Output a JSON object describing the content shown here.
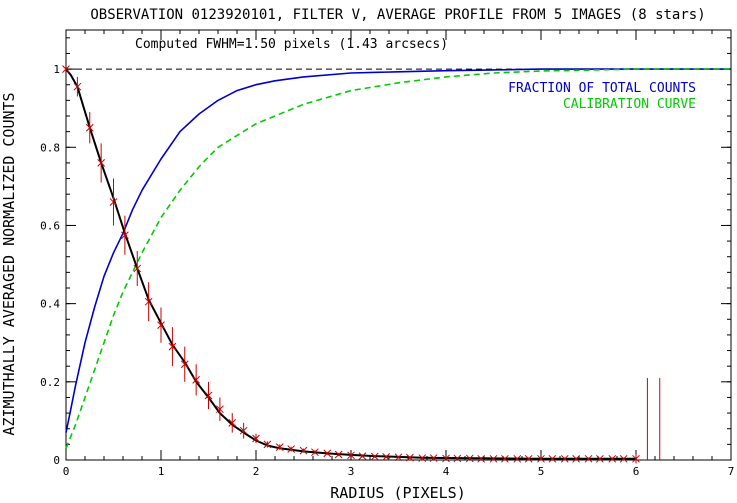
{
  "chart_data": {
    "type": "line",
    "title": "OBSERVATION 0123920101, FILTER V, AVERAGE PROFILE FROM 5 IMAGES (8 stars)",
    "annotation": "Computed FWHM=1.50 pixels (1.43 arcsecs)",
    "xlabel": "RADIUS (PIXELS)",
    "ylabel": "AZIMUTHALLY AVERAGED NORMALIZED COUNTS",
    "xlim": [
      0,
      7
    ],
    "ylim": [
      0,
      1.1
    ],
    "x_ticks": [
      "0",
      "1",
      "2",
      "3",
      "4",
      "5",
      "6",
      "7"
    ],
    "y_ticks": [
      "0",
      "0.2",
      "0.4",
      "0.6",
      "0.8",
      "1"
    ],
    "reference_line": {
      "y": 1,
      "style": "dashed",
      "color": "#000000"
    },
    "legend_position": "top-right",
    "series": [
      {
        "name": "FRACTION OF TOTAL COUNTS",
        "color": "#0000cc",
        "style": "solid",
        "x": [
          0,
          0.05,
          0.1,
          0.2,
          0.3,
          0.4,
          0.5,
          0.6,
          0.7,
          0.8,
          1.0,
          1.2,
          1.4,
          1.6,
          1.8,
          2.0,
          2.2,
          2.5,
          3.0,
          3.5,
          4.0,
          4.5,
          5.0,
          6.0,
          7.0
        ],
        "y": [
          0.07,
          0.13,
          0.19,
          0.3,
          0.39,
          0.47,
          0.53,
          0.58,
          0.64,
          0.69,
          0.77,
          0.84,
          0.885,
          0.92,
          0.945,
          0.96,
          0.97,
          0.98,
          0.99,
          0.993,
          0.996,
          0.998,
          1.0,
          1.0,
          1.0
        ]
      },
      {
        "name": "CALIBRATION CURVE",
        "color": "#00cc00",
        "style": "dashed",
        "x": [
          0,
          0.1,
          0.2,
          0.3,
          0.4,
          0.5,
          0.6,
          0.7,
          0.8,
          1.0,
          1.2,
          1.4,
          1.6,
          1.8,
          2.0,
          2.5,
          3.0,
          3.5,
          4.0,
          4.5,
          5.0,
          6.0,
          7.0
        ],
        "y": [
          0.03,
          0.09,
          0.16,
          0.23,
          0.3,
          0.37,
          0.43,
          0.48,
          0.53,
          0.62,
          0.69,
          0.75,
          0.8,
          0.83,
          0.86,
          0.91,
          0.945,
          0.965,
          0.98,
          0.99,
          0.995,
          1.0,
          1.0
        ]
      },
      {
        "name": "",
        "color": "#000000",
        "style": "solid",
        "x": [
          0,
          0.05,
          0.12,
          0.25,
          0.37,
          0.5,
          0.62,
          0.75,
          0.87,
          1.0,
          1.12,
          1.25,
          1.37,
          1.5,
          1.62,
          1.75,
          1.87,
          2.0,
          2.12,
          2.25,
          2.5,
          2.75,
          3.0,
          3.25,
          3.5,
          3.75,
          4.0,
          4.5,
          5.0,
          6.0
        ],
        "y": [
          1.0,
          0.985,
          0.955,
          0.85,
          0.76,
          0.67,
          0.58,
          0.49,
          0.41,
          0.35,
          0.295,
          0.25,
          0.2,
          0.16,
          0.12,
          0.09,
          0.07,
          0.05,
          0.037,
          0.03,
          0.022,
          0.017,
          0.013,
          0.01,
          0.008,
          0.006,
          0.005,
          0.004,
          0.003,
          0.003
        ]
      }
    ],
    "measurements": {
      "color": "#cc0000",
      "x": [
        0,
        0.12,
        0.25,
        0.37,
        0.5,
        0.62,
        0.75,
        0.87,
        1.0,
        1.12,
        1.25,
        1.37,
        1.5,
        1.62,
        1.75,
        1.87,
        2.0,
        2.12,
        2.25,
        2.37,
        2.5,
        2.62,
        2.75,
        2.87,
        3.0,
        3.12,
        3.25,
        3.37,
        3.5,
        3.62,
        3.75,
        3.87,
        4.0,
        4.12,
        4.25,
        4.37,
        4.5,
        4.62,
        4.75,
        4.87,
        5.0,
        5.12,
        5.25,
        5.37,
        5.5,
        5.62,
        5.75,
        5.87,
        6.0
      ],
      "y": [
        1.0,
        0.955,
        0.85,
        0.76,
        0.66,
        0.575,
        0.49,
        0.405,
        0.345,
        0.29,
        0.245,
        0.205,
        0.165,
        0.13,
        0.095,
        0.075,
        0.055,
        0.04,
        0.033,
        0.028,
        0.024,
        0.02,
        0.017,
        0.014,
        0.012,
        0.01,
        0.009,
        0.008,
        0.007,
        0.006,
        0.005,
        0.005,
        0.004,
        0.004,
        0.004,
        0.003,
        0.003,
        0.003,
        0.003,
        0.003,
        0.003,
        0.003,
        0.003,
        0.003,
        0.003,
        0.003,
        0.003,
        0.003,
        0.003
      ],
      "err": [
        0.0,
        0.025,
        0.04,
        0.05,
        0.06,
        0.05,
        0.045,
        0.05,
        0.045,
        0.05,
        0.045,
        0.04,
        0.035,
        0.03,
        0.025,
        0.02,
        0.012,
        0.008,
        0.007,
        0.006,
        0.005,
        0.005,
        0.004,
        0.004,
        0.003,
        0.003,
        0.003,
        0.003,
        0.003,
        0.003,
        0.003,
        0.003,
        0.003,
        0.003,
        0.003,
        0.003,
        0.003,
        0.003,
        0.003,
        0.003,
        0.003,
        0.003,
        0.003,
        0.003,
        0.003,
        0.003,
        0.003,
        0.003,
        0.012
      ],
      "outlier_bars": [
        {
          "x": 6.12,
          "y_low": 0.0,
          "y_high": 0.21
        },
        {
          "x": 6.25,
          "y_low": 0.0,
          "y_high": 0.21
        }
      ]
    }
  }
}
